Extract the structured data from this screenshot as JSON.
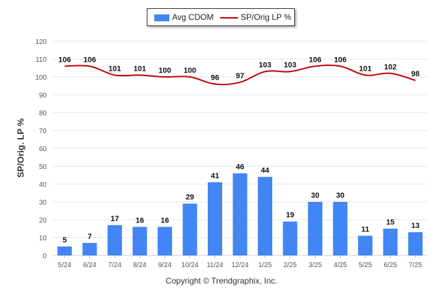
{
  "legend": {
    "bar_label": "Avg CDOM",
    "line_label": "SP/Orig LP %"
  },
  "copyright": "Copyright © Trendgraphix, Inc.",
  "chart_data": {
    "type": "bar",
    "categories": [
      "5/24",
      "6/24",
      "7/24",
      "8/24",
      "9/24",
      "10/24",
      "11/24",
      "12/24",
      "1/25",
      "2/25",
      "3/25",
      "4/25",
      "5/25",
      "6/25",
      "7/25"
    ],
    "series": [
      {
        "name": "Avg CDOM",
        "type": "bar",
        "values": [
          5,
          7,
          17,
          16,
          16,
          29,
          41,
          46,
          44,
          19,
          30,
          30,
          11,
          15,
          13
        ],
        "color": "#4285f4"
      },
      {
        "name": "SP/Orig LP %",
        "type": "line",
        "values": [
          106,
          106,
          101,
          101,
          100,
          100,
          96,
          97,
          103,
          103,
          106,
          106,
          101,
          102,
          98
        ],
        "color": "#c00000"
      }
    ],
    "ylabel": "SP/Orig. LP %",
    "xlabel": "",
    "ylim": [
      0,
      120
    ],
    "yticks": [
      0,
      10,
      20,
      30,
      40,
      50,
      60,
      70,
      80,
      90,
      100,
      110,
      120
    ],
    "grid": true,
    "legend_position": "top-center"
  }
}
